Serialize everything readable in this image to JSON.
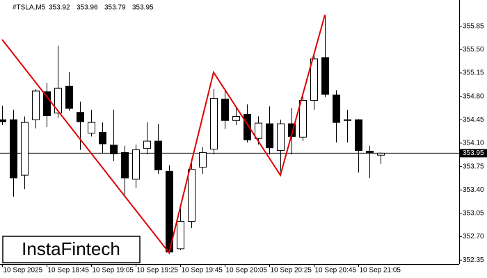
{
  "chart_data": {
    "type": "candlestick",
    "symbol": "#TSLA,M5",
    "header_ohlc": [
      353.92,
      353.96,
      353.79,
      353.95
    ],
    "categories": [
      "10 Sep 2025",
      null,
      null,
      null,
      "10 Sep 18:45",
      null,
      null,
      null,
      "10 Sep 19:05",
      null,
      null,
      null,
      "10 Sep 19:25",
      null,
      null,
      null,
      "10 Sep 19:45",
      null,
      null,
      null,
      "10 Sep 20:05",
      null,
      null,
      null,
      "10 Sep 20:25",
      null,
      null,
      null,
      "10 Sep 20:45",
      null,
      null,
      null,
      "10 Sep 21:05",
      null,
      null
    ],
    "ohlc": [
      [
        354.45,
        354.66,
        354.37,
        354.42
      ],
      [
        354.45,
        354.6,
        353.3,
        353.58
      ],
      [
        353.62,
        354.5,
        353.41,
        354.41
      ],
      [
        354.45,
        354.91,
        354.32,
        354.88
      ],
      [
        354.87,
        355.0,
        354.34,
        354.51
      ],
      [
        354.55,
        355.56,
        354.48,
        354.92
      ],
      [
        354.95,
        355.16,
        354.58,
        354.62
      ],
      [
        354.56,
        354.72,
        354.0,
        354.42
      ],
      [
        354.25,
        354.6,
        354.2,
        354.41
      ],
      [
        354.26,
        354.41,
        353.95,
        354.09
      ],
      [
        354.07,
        354.6,
        353.83,
        353.94
      ],
      [
        353.96,
        354.06,
        353.33,
        353.58
      ],
      [
        353.56,
        354.08,
        353.43,
        354.0
      ],
      [
        354.02,
        354.41,
        353.93,
        354.13
      ],
      [
        354.13,
        354.39,
        353.64,
        353.7
      ],
      [
        353.68,
        353.77,
        352.44,
        352.47
      ],
      [
        352.52,
        353.12,
        352.5,
        352.93
      ],
      [
        352.93,
        353.87,
        352.83,
        353.71
      ],
      [
        353.74,
        354.04,
        353.64,
        353.96
      ],
      [
        354.01,
        354.91,
        353.93,
        354.77
      ],
      [
        354.76,
        354.89,
        354.31,
        354.44
      ],
      [
        354.44,
        354.62,
        354.37,
        354.5
      ],
      [
        354.53,
        354.68,
        354.11,
        354.15
      ],
      [
        354.17,
        354.5,
        354.08,
        354.4
      ],
      [
        354.39,
        354.65,
        353.93,
        354.03
      ],
      [
        353.99,
        354.45,
        353.64,
        354.39
      ],
      [
        354.39,
        354.63,
        353.93,
        354.2
      ],
      [
        354.19,
        354.79,
        354.13,
        354.74
      ],
      [
        354.74,
        355.46,
        354.6,
        355.36
      ],
      [
        355.38,
        356.02,
        354.79,
        354.83
      ],
      [
        354.82,
        354.89,
        354.11,
        354.41
      ],
      [
        354.45,
        354.6,
        354.11,
        354.45
      ],
      [
        354.45,
        354.46,
        353.66,
        353.99
      ],
      [
        353.98,
        354.06,
        353.58,
        353.96
      ],
      [
        353.92,
        353.96,
        353.79,
        353.95
      ]
    ],
    "bull_color": "#ffffff",
    "bear_color": "#000000",
    "ylim": [
      352.29,
      356.19
    ],
    "yticks": [
      355.85,
      {
        "value": 355.5,
        "label": "355.50"
      },
      355.15,
      {
        "value": 354.8,
        "label": "354.80"
      },
      354.45,
      {
        "value": 354.1,
        "label": "354.10"
      },
      353.75,
      {
        "value": 353.4,
        "label": "353.40"
      },
      353.05,
      {
        "value": 352.7,
        "label": "352.70"
      },
      352.35
    ],
    "price_line": 353.95,
    "pattern": {
      "color": "#e00000",
      "points": [
        [
          0,
          355.65
        ],
        [
          15,
          352.46
        ],
        [
          19,
          355.16
        ],
        [
          25,
          353.62
        ],
        [
          29,
          356.02
        ]
      ]
    }
  },
  "logo": {
    "text": "InstaFintech"
  }
}
